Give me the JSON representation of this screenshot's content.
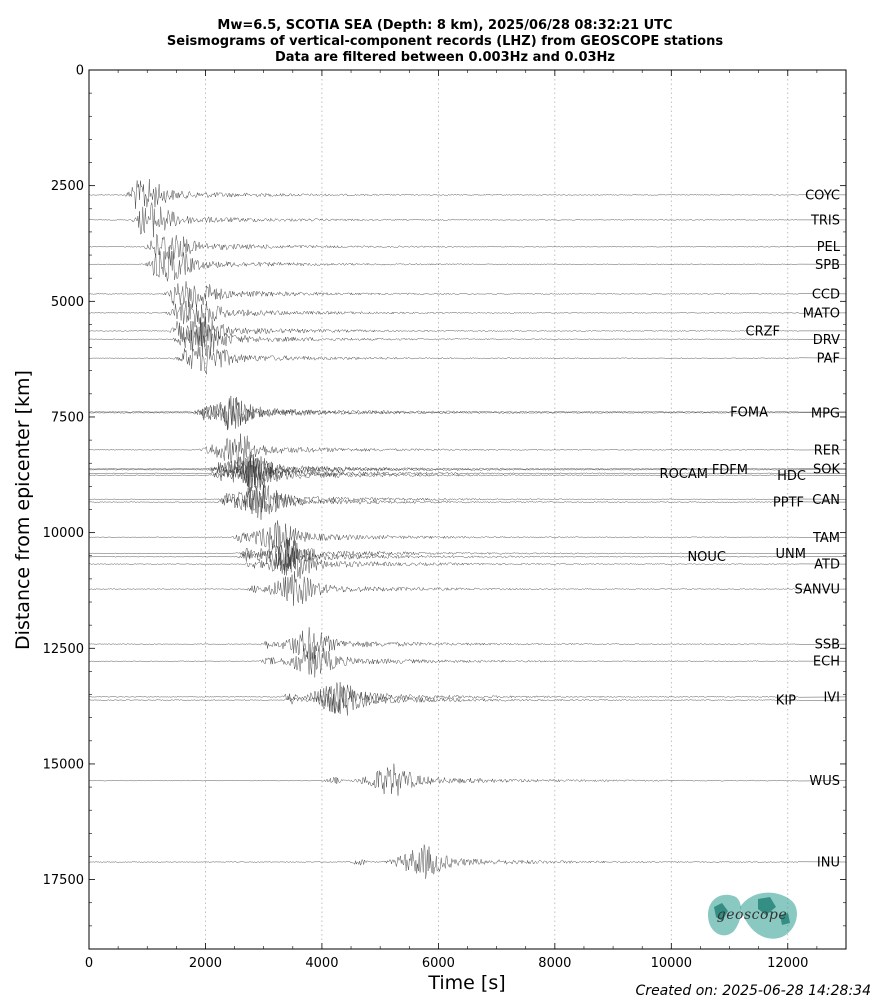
{
  "chart_data": {
    "type": "line",
    "title": [
      "Mw=6.5, SCOTIA SEA (Depth: 8 km), 2025/06/28 08:32:21 UTC",
      "Seismograms of vertical-component records (LHZ) from GEOSCOPE stations",
      "Data are filtered between 0.003Hz and 0.03Hz"
    ],
    "xlabel": "Time [s]",
    "ylabel": "Distance from epicenter [km]",
    "xlim": [
      0,
      13000
    ],
    "ylim": [
      19000,
      0
    ],
    "x_ticks": [
      0,
      2000,
      4000,
      6000,
      8000,
      10000,
      12000
    ],
    "y_ticks": [
      0,
      2500,
      5000,
      7500,
      10000,
      12500,
      15000,
      17500
    ],
    "grid": "vertical dotted",
    "stations": [
      {
        "name": "COYC",
        "distance": 2700,
        "arrival": 730
      },
      {
        "name": "TRIS",
        "distance": 3240,
        "arrival": 850
      },
      {
        "name": "PEL",
        "distance": 3820,
        "arrival": 1060
      },
      {
        "name": "SPB",
        "distance": 4200,
        "arrival": 1100
      },
      {
        "name": "CCD",
        "distance": 4840,
        "arrival": 1420
      },
      {
        "name": "MATO",
        "distance": 5250,
        "arrival": 1450
      },
      {
        "name": "CRZF",
        "distance": 5640,
        "arrival": 1500
      },
      {
        "name": "DRV",
        "distance": 5820,
        "arrival": 1560
      },
      {
        "name": "PAF",
        "distance": 6230,
        "arrival": 1600
      },
      {
        "name": "FOMA",
        "distance": 7390,
        "arrival": 1950
      },
      {
        "name": "MPG",
        "distance": 7410,
        "arrival": 1950
      },
      {
        "name": "RER",
        "distance": 8210,
        "arrival": 2050
      },
      {
        "name": "SOK",
        "distance": 8620,
        "arrival": 2200
      },
      {
        "name": "FDFM",
        "distance": 8640,
        "arrival": 2200
      },
      {
        "name": "ROCAM",
        "distance": 8720,
        "arrival": 2250
      },
      {
        "name": "HDC",
        "distance": 8760,
        "arrival": 2250
      },
      {
        "name": "CAN",
        "distance": 9280,
        "arrival": 2350
      },
      {
        "name": "PPTF",
        "distance": 9340,
        "arrival": 2350
      },
      {
        "name": "TAM",
        "distance": 10100,
        "arrival": 2600
      },
      {
        "name": "UNM",
        "distance": 10450,
        "arrival": 2700
      },
      {
        "name": "NOUC",
        "distance": 10520,
        "arrival": 2700
      },
      {
        "name": "ATD",
        "distance": 10680,
        "arrival": 2800
      },
      {
        "name": "SANVU",
        "distance": 11220,
        "arrival": 2850
      },
      {
        "name": "SSB",
        "distance": 12410,
        "arrival": 3050
      },
      {
        "name": "ECH",
        "distance": 12780,
        "arrival": 3100
      },
      {
        "name": "IVI",
        "distance": 13550,
        "arrival": 3450
      },
      {
        "name": "KIP",
        "distance": 13620,
        "arrival": 3500
      },
      {
        "name": "WUS",
        "distance": 15360,
        "arrival": 4200
      },
      {
        "name": "INU",
        "distance": 17120,
        "arrival": 4650
      }
    ],
    "label_offsets": {
      "CRZF": -60,
      "FOMA": -72,
      "FDFM": -92,
      "ROCAM": -132,
      "HDC": -34,
      "PPTF": -36,
      "UNM": -34,
      "NOUC": -114,
      "KIP": -44
    }
  },
  "footer": {
    "created": "Created on: 2025-06-28 14:28:34"
  },
  "logo": {
    "text": "geoscope",
    "color": "#2a9d8f"
  }
}
